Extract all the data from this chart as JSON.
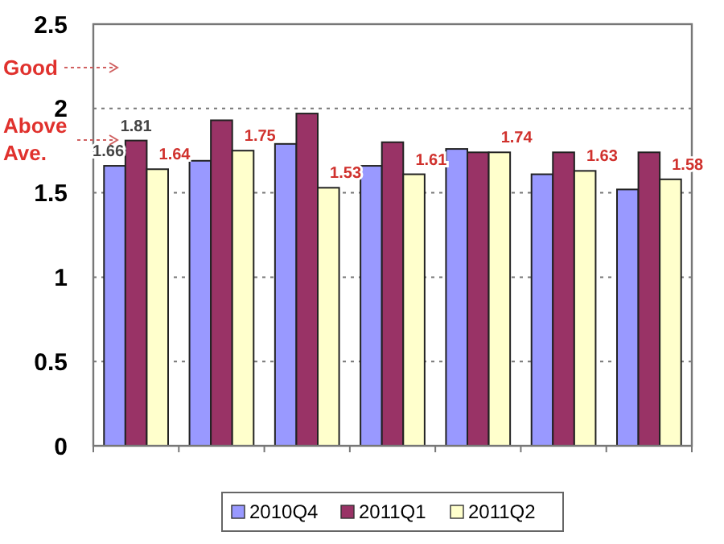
{
  "chart_data": {
    "type": "bar",
    "categories": [
      null,
      null,
      null,
      null,
      null,
      null,
      null
    ],
    "series": [
      {
        "name": "2010Q4",
        "color": "#9999ff",
        "values": [
          1.66,
          1.69,
          1.79,
          1.66,
          1.76,
          1.61,
          1.52
        ],
        "value_labels": [
          "1.66",
          null,
          null,
          null,
          null,
          null,
          null
        ]
      },
      {
        "name": "2011Q1",
        "color": "#993366",
        "values": [
          1.81,
          1.93,
          1.97,
          1.8,
          1.74,
          1.74,
          1.74
        ],
        "value_labels": [
          "1.81",
          null,
          null,
          null,
          null,
          null,
          null
        ]
      },
      {
        "name": "2011Q2",
        "color": "#ffffcc",
        "values": [
          1.64,
          1.75,
          1.53,
          1.61,
          1.74,
          1.63,
          1.58
        ],
        "value_labels": [
          "1.64",
          "1.75",
          "1.53",
          "1.61",
          "1.74",
          "1.63",
          "1.58"
        ]
      }
    ],
    "ylim": [
      0,
      2.5
    ],
    "yticks": [
      0,
      0.5,
      1,
      1.5,
      2,
      2.5
    ],
    "grid": "y",
    "legend": "bottom",
    "annotations": [
      "Good",
      "Above Ave."
    ]
  }
}
